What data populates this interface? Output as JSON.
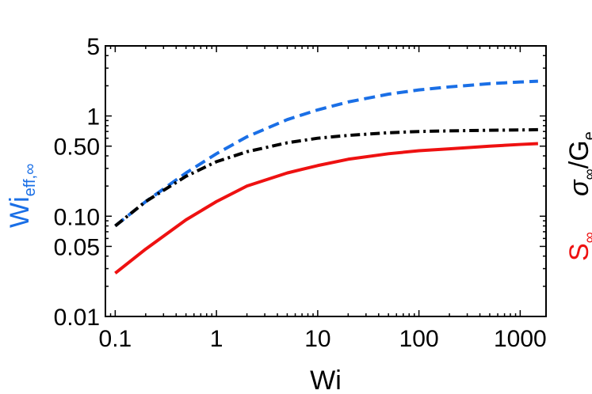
{
  "chart_data": {
    "type": "line",
    "xscale": "log",
    "yscale": "log",
    "xlim": [
      0.08,
      1800
    ],
    "ylim": [
      0.01,
      5
    ],
    "xlabel": "Wi",
    "x_ticks": [
      {
        "value": 0.1,
        "label": "0.1"
      },
      {
        "value": 1,
        "label": "1"
      },
      {
        "value": 10,
        "label": "10"
      },
      {
        "value": 100,
        "label": "100"
      },
      {
        "value": 1000,
        "label": "1000"
      }
    ],
    "y_ticks": [
      {
        "value": 0.01,
        "label": "0.01"
      },
      {
        "value": 0.05,
        "label": "0.05"
      },
      {
        "value": 0.1,
        "label": "0.10"
      },
      {
        "value": 0.5,
        "label": "0.50"
      },
      {
        "value": 1,
        "label": "1"
      },
      {
        "value": 5,
        "label": "5"
      }
    ],
    "left_ylabel": {
      "main": "Wi",
      "sub": "eff,∞",
      "color": "#1a6fe6"
    },
    "right_ylabels": [
      {
        "main": "σ",
        "sub": "∞",
        "tail": "/G",
        "tail_sub": "e",
        "color": "#000000"
      },
      {
        "main": "S",
        "sub": "∞",
        "color": "#ee1111"
      }
    ],
    "series": [
      {
        "name": "Wi_eff,∞",
        "color": "#1a6fe6",
        "style": "dashed",
        "x": [
          0.1,
          0.2,
          0.5,
          1,
          2,
          5,
          10,
          20,
          50,
          100,
          200,
          500,
          1000,
          1500
        ],
        "y": [
          0.08,
          0.14,
          0.27,
          0.42,
          0.62,
          0.92,
          1.15,
          1.38,
          1.65,
          1.82,
          1.95,
          2.1,
          2.18,
          2.22
        ]
      },
      {
        "name": "σ∞/Ge",
        "color": "#000000",
        "style": "dashdot",
        "x": [
          0.1,
          0.2,
          0.5,
          1,
          2,
          5,
          10,
          20,
          50,
          100,
          200,
          500,
          1000,
          1500
        ],
        "y": [
          0.08,
          0.14,
          0.25,
          0.35,
          0.44,
          0.54,
          0.6,
          0.64,
          0.68,
          0.7,
          0.71,
          0.72,
          0.725,
          0.73
        ]
      },
      {
        "name": "S∞",
        "color": "#ee1111",
        "style": "solid",
        "x": [
          0.1,
          0.2,
          0.5,
          1,
          2,
          5,
          10,
          20,
          50,
          100,
          200,
          500,
          1000,
          1500
        ],
        "y": [
          0.027,
          0.047,
          0.092,
          0.14,
          0.2,
          0.27,
          0.32,
          0.37,
          0.42,
          0.45,
          0.47,
          0.5,
          0.52,
          0.53
        ]
      }
    ]
  }
}
